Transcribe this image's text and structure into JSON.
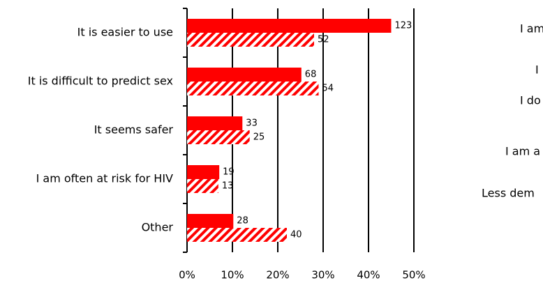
{
  "chart_data": {
    "type": "bar",
    "orientation": "horizontal",
    "categories": [
      "It is easier to use",
      "It is difficult to predict sex",
      "It seems safer",
      "I am often at risk for HIV",
      "Other"
    ],
    "series": [
      {
        "color": "#ff0000",
        "pattern": "solid",
        "values": [
          45,
          25.2,
          12.2,
          7.1,
          10.2
        ],
        "value_labels": [
          "123",
          "68",
          "33",
          "19",
          "28"
        ]
      },
      {
        "color": "#ff0000",
        "pattern": "hatch",
        "values": [
          28,
          29,
          13.8,
          6.9,
          22
        ],
        "value_labels": [
          "52",
          "54",
          "25",
          "13",
          "40"
        ]
      }
    ],
    "xlim": [
      0,
      50
    ],
    "xticks": [
      {
        "value": 0,
        "label": "0%"
      },
      {
        "value": 10,
        "label": "10%"
      },
      {
        "value": 20,
        "label": "20%"
      },
      {
        "value": 30,
        "label": "30%"
      },
      {
        "value": 40,
        "label": "40%"
      },
      {
        "value": 50,
        "label": "50%"
      }
    ],
    "grid": true
  },
  "right_panel_labels": [
    "I am",
    "I",
    "I do",
    "I am a",
    "Less dem"
  ]
}
